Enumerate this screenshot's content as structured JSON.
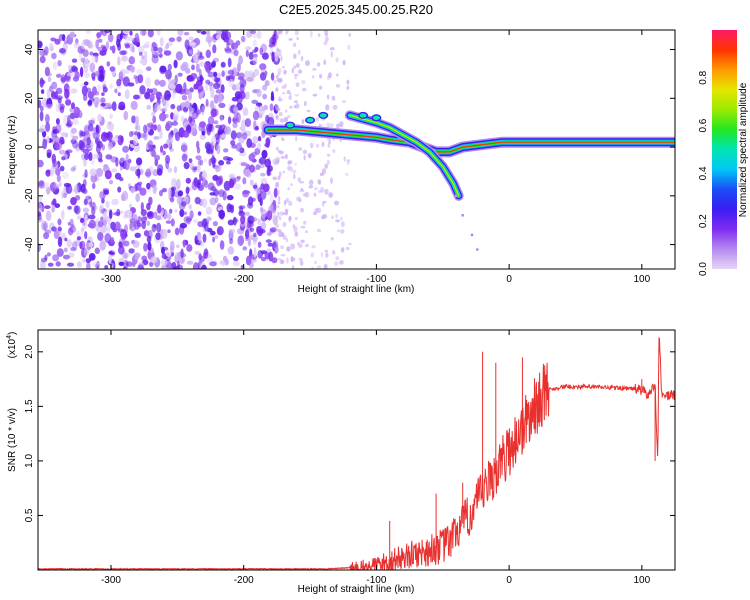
{
  "figure": {
    "title": "C2E5.2025.345.00.25.R20"
  },
  "chart_data": [
    {
      "type": "heatmap",
      "title": "C2E5.2025.345.00.25.R20",
      "xlabel": "Height of straight line (km)",
      "ylabel": "Frequency (Hz)",
      "xlim": [
        -355,
        125
      ],
      "ylim": [
        -50,
        48
      ],
      "xticks": [
        -300,
        -200,
        -100,
        0,
        100
      ],
      "yticks": [
        -40,
        -20,
        0,
        20,
        40
      ],
      "grid": false,
      "colorbar": {
        "label": "Normalized spectral amplitude",
        "range": [
          0,
          1
        ],
        "ticks": [
          "0.0",
          "0.2",
          "0.4",
          "0.6",
          "0.8"
        ],
        "colormap": [
          "#e6d5f5",
          "#b58af0",
          "#7f2bf0",
          "#3a1df2",
          "#1a4df7",
          "#00c7f5",
          "#00e6b4",
          "#22e622",
          "#9bea00",
          "#e6e600",
          "#ff9900",
          "#ff3300",
          "#ff1a66"
        ]
      },
      "features": {
        "noise_region_x": [
          -355,
          -175
        ],
        "sparse_region_x": [
          -175,
          -120
        ],
        "upper_trace": [
          [
            -182,
            7
          ],
          [
            -160,
            7
          ],
          [
            -140,
            6
          ],
          [
            -120,
            5
          ],
          [
            -100,
            4
          ],
          [
            -90,
            3
          ],
          [
            -75,
            2
          ],
          [
            -65,
            0
          ],
          [
            -55,
            -2
          ],
          [
            -45,
            -2
          ],
          [
            -35,
            0
          ],
          [
            -20,
            1
          ],
          [
            -5,
            2
          ],
          [
            10,
            2
          ],
          [
            40,
            2
          ],
          [
            80,
            2
          ],
          [
            110,
            2
          ],
          [
            125,
            2
          ]
        ],
        "branch_trace": [
          [
            -120,
            13
          ],
          [
            -100,
            10
          ],
          [
            -90,
            8
          ],
          [
            -80,
            5
          ],
          [
            -70,
            2
          ],
          [
            -60,
            -2
          ],
          [
            -50,
            -8
          ],
          [
            -42,
            -15
          ],
          [
            -38,
            -20
          ]
        ],
        "upper_markers": [
          [
            -165,
            9
          ],
          [
            -150,
            11
          ],
          [
            -140,
            13
          ],
          [
            -110,
            13
          ],
          [
            -100,
            12
          ]
        ],
        "streak": [
          [
            -40,
            -20
          ],
          [
            -35,
            -28
          ],
          [
            -28,
            -36
          ],
          [
            -24,
            -42
          ]
        ]
      }
    },
    {
      "type": "line",
      "xlabel": "Height of straight line (km)",
      "ylabel": "SNR (10 * v/v)",
      "y_multiplier": "(x10^4)",
      "y_multiplier_base": "(x10",
      "y_multiplier_exp": "4",
      "y_multiplier_close": ")",
      "xlim": [
        -355,
        125
      ],
      "ylim": [
        0,
        2.2
      ],
      "xticks": [
        -300,
        -200,
        -100,
        0,
        100
      ],
      "yticks": [
        "0.5",
        "1.0",
        "1.5",
        "2.0"
      ],
      "grid": false,
      "series": [
        {
          "color": "#e8302e",
          "x": [
            -355,
            -300,
            -250,
            -200,
            -160,
            -140,
            -120,
            -105,
            -100,
            -90,
            -80,
            -70,
            -60,
            -50,
            -45,
            -40,
            -30,
            -20,
            -10,
            0,
            10,
            20,
            25,
            30,
            40,
            60,
            80,
            95,
            100,
            105,
            110,
            112,
            113,
            115,
            120,
            125
          ],
          "y": [
            0.01,
            0.01,
            0.01,
            0.01,
            0.01,
            0.01,
            0.02,
            0.03,
            0.05,
            0.08,
            0.12,
            0.15,
            0.18,
            0.22,
            0.25,
            0.35,
            0.5,
            0.7,
            0.9,
            1.1,
            1.3,
            1.5,
            1.6,
            1.65,
            1.68,
            1.68,
            1.67,
            1.66,
            1.65,
            1.6,
            1.7,
            1.0,
            2.2,
            1.6,
            1.6,
            1.6
          ]
        }
      ],
      "spikes": [
        [
          -20,
          2.0
        ],
        [
          -10,
          1.9
        ],
        [
          10,
          1.95
        ],
        [
          -35,
          0.8
        ],
        [
          -55,
          0.7
        ],
        [
          -90,
          0.45
        ],
        [
          100,
          1.75
        ],
        [
          110,
          1.0
        ],
        [
          113,
          2.2
        ]
      ]
    }
  ]
}
